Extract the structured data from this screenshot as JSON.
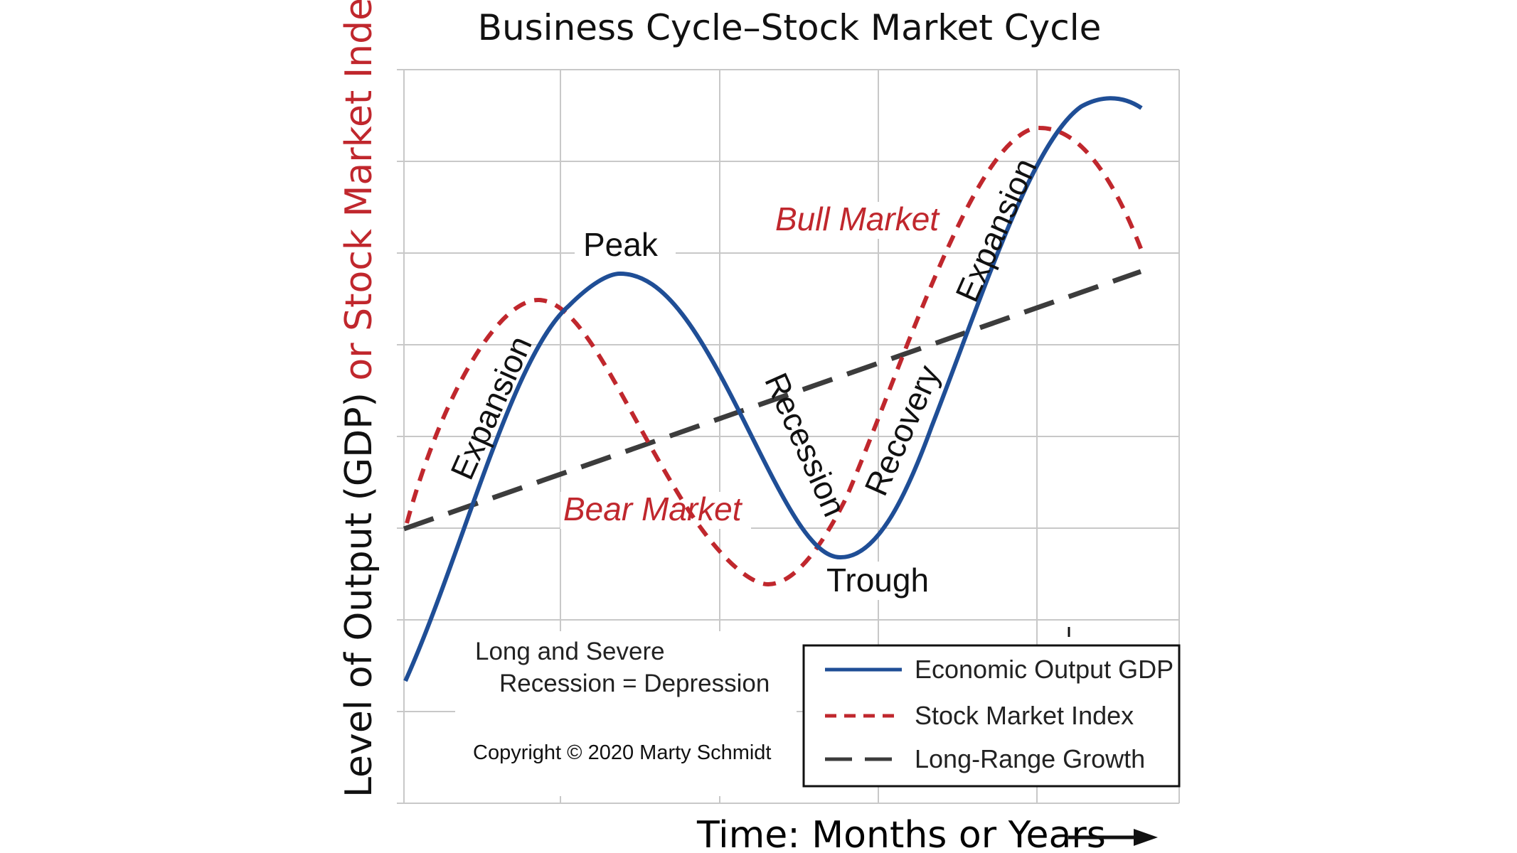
{
  "title": "Business Cycle–Stock Market Cycle",
  "y_axis": {
    "part1": "Level of Output (GDP)",
    "part2": " or Stock Market Index",
    "part1_color": "#111111",
    "part2_color": "#c0272d"
  },
  "x_axis": {
    "label": "Time: Months or Years"
  },
  "labels": {
    "peak": "Peak",
    "trough": "Trough",
    "expansion_1": "Expansion",
    "expansion_2": "Expansion",
    "recession": "Recession",
    "recovery": "Recovery",
    "bull_market": "Bull Market",
    "bear_market": "Bear Market"
  },
  "note": {
    "line1": "Long and Severe",
    "line2": "Recession = Depression"
  },
  "copyright": "Copyright © 2020  Marty Schmidt",
  "legend": {
    "gdp": "Economic Output GDP",
    "stock": "Stock Market Index",
    "growth": "Long-Range Growth"
  },
  "colors": {
    "gdp": "#1f4e96",
    "stock": "#c0272d",
    "growth": "#3c3c3c",
    "grid": "#c8c8c8"
  }
}
